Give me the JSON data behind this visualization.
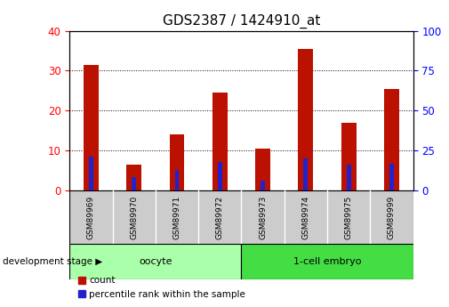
{
  "title": "GDS2387 / 1424910_at",
  "samples": [
    "GSM89969",
    "GSM89970",
    "GSM89971",
    "GSM89972",
    "GSM89973",
    "GSM89974",
    "GSM89975",
    "GSM89999"
  ],
  "counts": [
    31.5,
    6.5,
    14.0,
    24.5,
    10.5,
    35.5,
    17.0,
    25.5
  ],
  "percentile_ranks": [
    21.0,
    8.5,
    13.0,
    18.0,
    6.0,
    20.0,
    16.0,
    16.5
  ],
  "count_color": "#bb1100",
  "percentile_color": "#2222cc",
  "red_bar_width": 0.35,
  "blue_bar_width": 0.1,
  "ylim_left": [
    0,
    40
  ],
  "ylim_right": [
    0,
    100
  ],
  "yticks_left": [
    0,
    10,
    20,
    30,
    40
  ],
  "yticks_right": [
    0,
    25,
    50,
    75,
    100
  ],
  "groups": [
    {
      "label": "oocyte",
      "start": 0,
      "end": 3,
      "color": "#aaffaa"
    },
    {
      "label": "1-cell embryo",
      "start": 4,
      "end": 7,
      "color": "#44dd44"
    }
  ],
  "group_label_text": "development stage",
  "legend_count_label": "count",
  "legend_percentile_label": "percentile rank within the sample",
  "tick_bg_color": "#cccccc",
  "plot_bg_color": "#ffffff",
  "title_fontsize": 11,
  "tick_fontsize": 8.5,
  "label_fontsize": 8
}
